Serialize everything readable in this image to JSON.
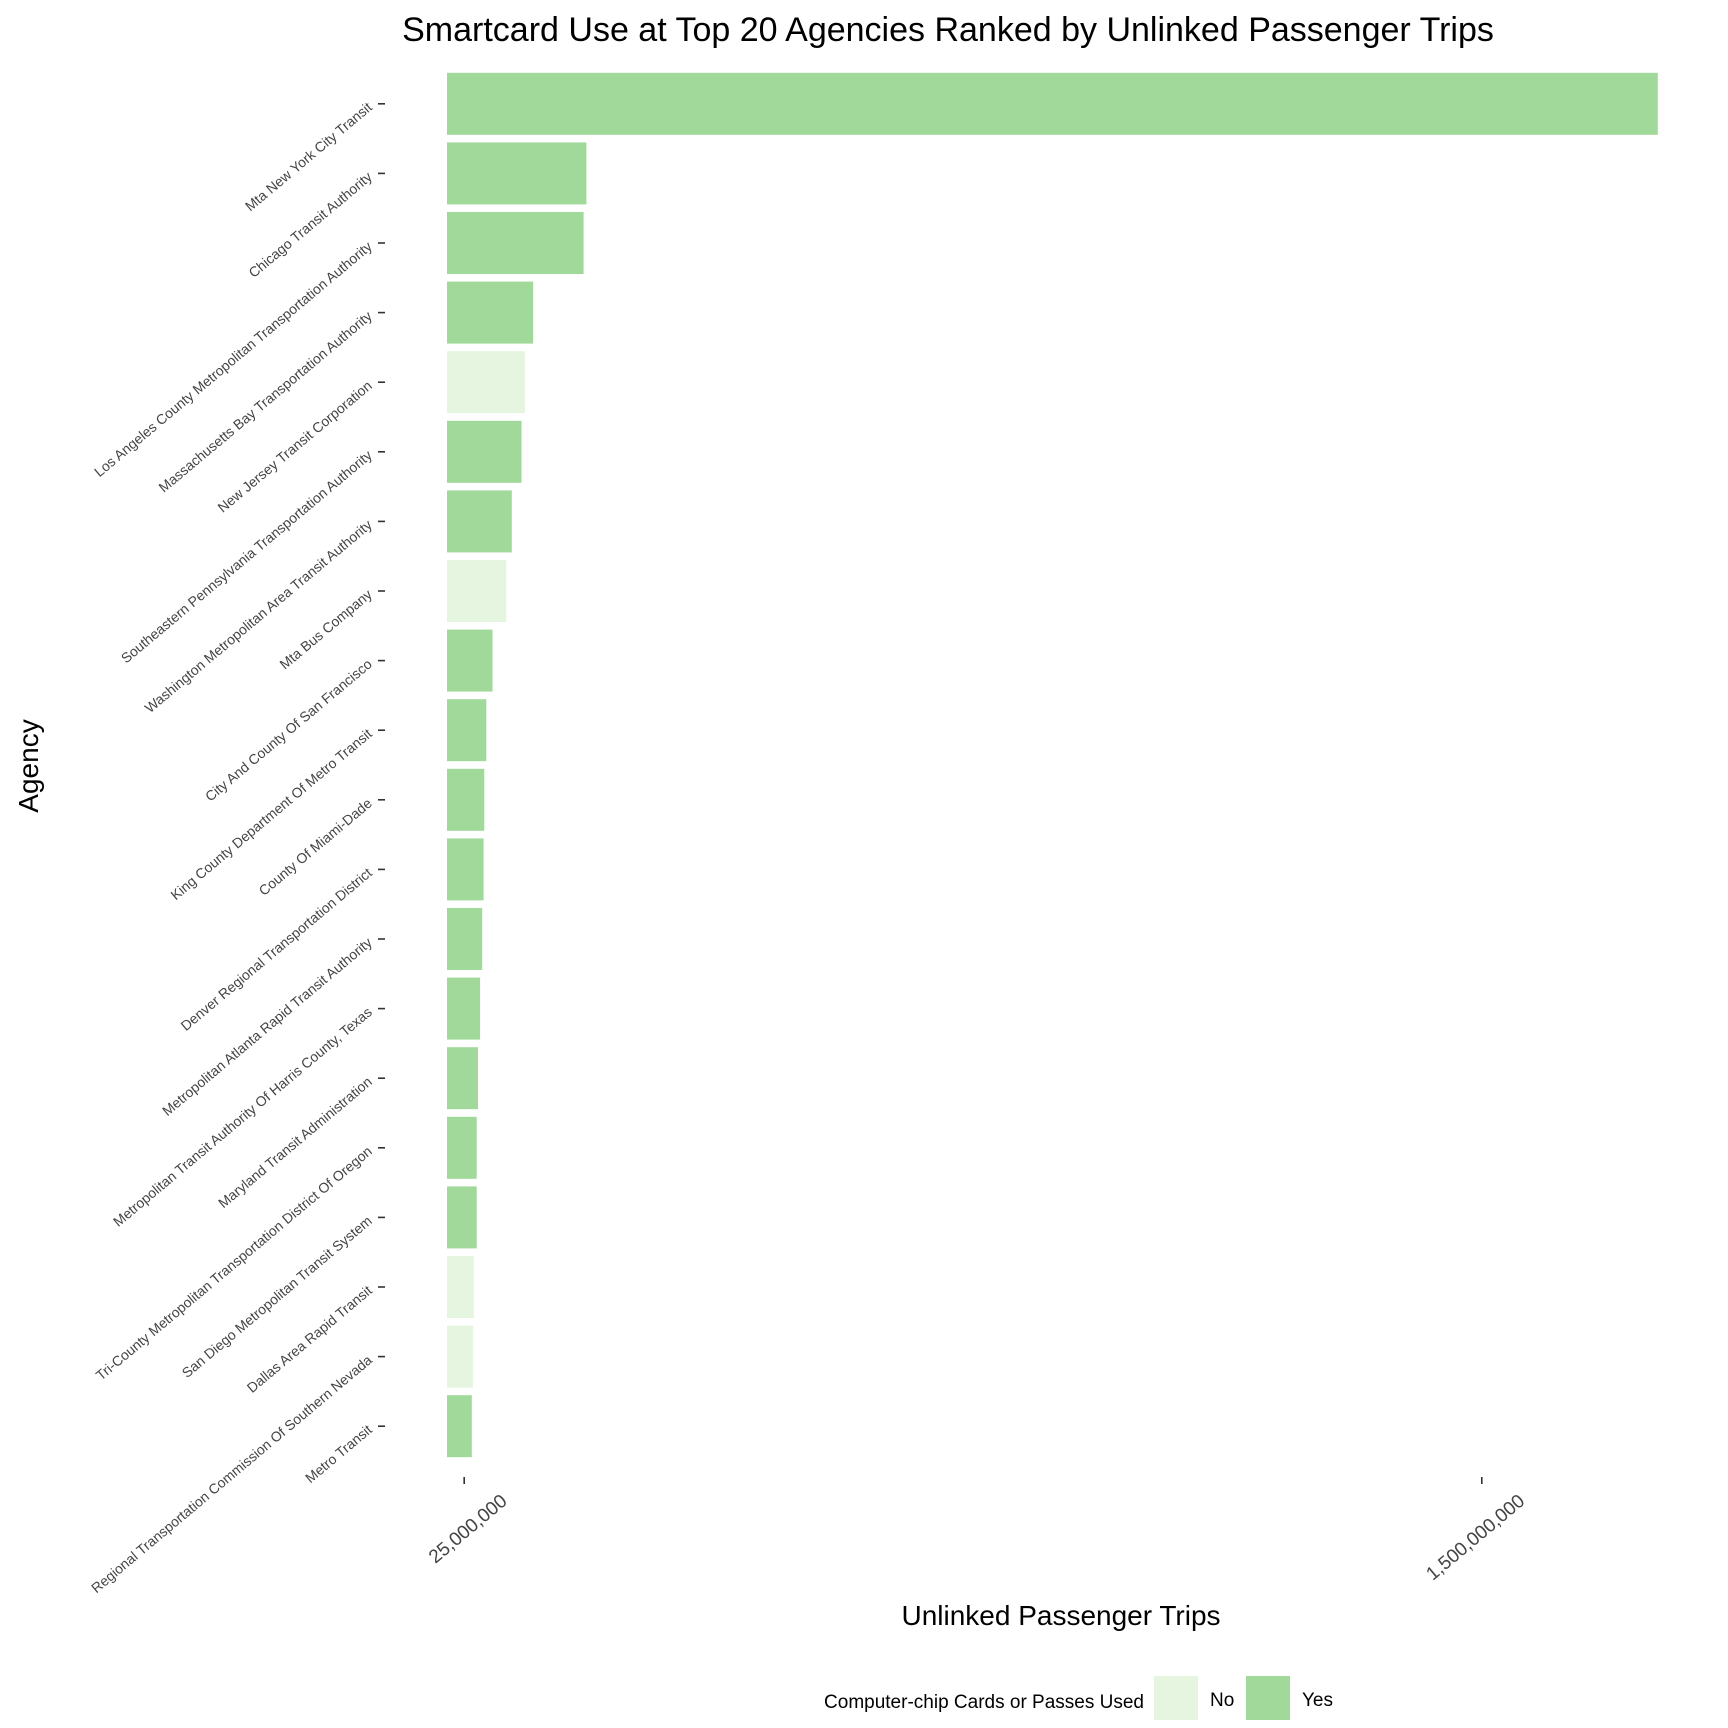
{
  "chart_data": {
    "type": "bar",
    "orientation": "horizontal",
    "title": "Smartcard Use at Top 20 Agencies Ranked by Unlinked Passenger Trips",
    "xlabel": "Unlinked Passenger Trips",
    "ylabel": "Agency",
    "x_ticks": [
      {
        "value": 25000000,
        "label": "25,000,000"
      },
      {
        "value": 1500000000,
        "label": "1,500,000,000"
      }
    ],
    "xlim": [
      0,
      1780000000
    ],
    "grid": false,
    "legend": {
      "title": "Computer-chip Cards or Passes Used",
      "position": "bottom",
      "entries": [
        {
          "label": "No",
          "color": "#e5f5e0"
        },
        {
          "label": "Yes",
          "color": "#a1d99b"
        }
      ]
    },
    "colors": {
      "No": "#e5f5e0",
      "Yes": "#a1d99b"
    },
    "categories": [
      "Mta New York City Transit",
      "Chicago Transit Authority",
      "Los Angeles County Metropolitan Transportation Authority",
      "Massachusetts Bay Transportation Authority",
      "New Jersey Transit Corporation",
      "Southeastern Pennsylvania Transportation Authority",
      "Washington Metropolitan Area Transit Authority",
      "Mta Bus Company",
      "City And County Of San Francisco",
      "King County Department Of Metro Transit",
      "County Of Miami-Dade",
      "Denver Regional Transportation District",
      "Metropolitan Atlanta Rapid Transit Authority",
      "Metropolitan Transit Authority Of Harris County, Texas",
      "Maryland Transit Administration",
      "Tri-County Metropolitan Transportation District Of Oregon",
      "San Diego Metropolitan Transit System",
      "Dallas Area Rapid Transit",
      "Regional Transportation Commission Of Southern Nevada",
      "Metro Transit"
    ],
    "values": [
      1755000000,
      202000000,
      198000000,
      125000000,
      113000000,
      108000000,
      94000000,
      86000000,
      66000000,
      57000000,
      54000000,
      53000000,
      51000000,
      48000000,
      45000000,
      43000000,
      43000000,
      39000000,
      38000000,
      36000000
    ],
    "smartcard": [
      "Yes",
      "Yes",
      "Yes",
      "Yes",
      "No",
      "Yes",
      "Yes",
      "No",
      "Yes",
      "Yes",
      "Yes",
      "Yes",
      "Yes",
      "Yes",
      "Yes",
      "Yes",
      "Yes",
      "No",
      "No",
      "Yes"
    ]
  }
}
